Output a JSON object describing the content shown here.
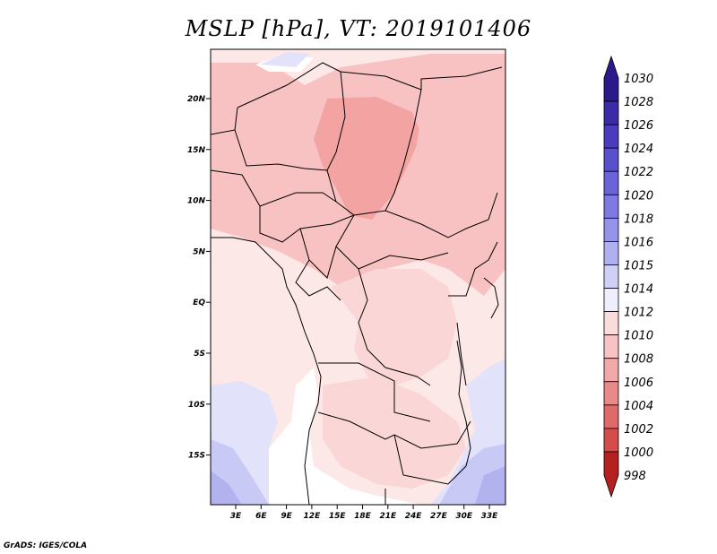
{
  "title": "MSLP [hPa], VT: 2019101406",
  "credit": "GrADS: IGES/COLA",
  "map": {
    "lon_ticks": [
      "3E",
      "6E",
      "9E",
      "12E",
      "15E",
      "18E",
      "21E",
      "24E",
      "27E",
      "30E",
      "33E"
    ],
    "lat_ticks": [
      "20N",
      "15N",
      "10N",
      "5N",
      "EQ",
      "5S",
      "10S",
      "15S"
    ],
    "colors": {
      "strong_low": "#f4a3a3",
      "low": "#f8c2c2",
      "mid": "#fbd6d6",
      "light": "#fde8e8",
      "neutral": "#ffffff",
      "high1": "#e2e2fb",
      "high2": "#c9c9f5",
      "high3": "#b2b2ef",
      "border": "#000000"
    }
  },
  "colorbar": {
    "labels": [
      "1030",
      "1028",
      "1026",
      "1024",
      "1022",
      "1020",
      "1018",
      "1016",
      "1015",
      "1014",
      "1012",
      "1010",
      "1008",
      "1006",
      "1004",
      "1002",
      "1000",
      "998"
    ],
    "colors": [
      "#2a1a8a",
      "#3b2ba6",
      "#4a3cbd",
      "#5a50cc",
      "#6b64d8",
      "#7e7ae2",
      "#9593ea",
      "#b0b0f1",
      "#d0d0f7",
      "#eeeefd",
      "#fbdcdc",
      "#f7c3c3",
      "#f1a9a9",
      "#e88a8a",
      "#de6a6a",
      "#d34d4d",
      "#c63434",
      "#b52121"
    ]
  }
}
